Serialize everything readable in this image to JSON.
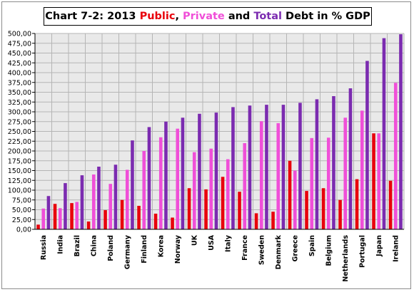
{
  "title": {
    "prefix": "Chart 7-2: 2013 ",
    "public": "Public",
    "sep1": ", ",
    "private": "Private",
    "and": " and ",
    "total": "Total",
    "suffix": " Debt in % GDP"
  },
  "colors": {
    "public": "#e8000b",
    "private": "#f04fd8",
    "total": "#7b2bb0",
    "grid": "#b5b5b5",
    "plot_bg": "#e9e9e9"
  },
  "chart_data": {
    "type": "bar",
    "title": "Chart 7-2: 2013 Public, Private and Total Debt in % GDP",
    "xlabel": "",
    "ylabel": "",
    "ylim": [
      0,
      500
    ],
    "ytick_step": 25,
    "grid": true,
    "legend": "none",
    "categories": [
      "Russia",
      "India",
      "Brazil",
      "China",
      "Poland",
      "Germany",
      "Finland",
      "Korea",
      "Norway",
      "UK",
      "USA",
      "Italy",
      "France",
      "Sweden",
      "Denmark",
      "Greece",
      "Spain",
      "Belgium",
      "Netherlands",
      "Portugal",
      "Japan",
      "Ireland"
    ],
    "series": [
      {
        "name": "Public",
        "values": [
          12,
          65,
          67,
          20,
          49,
          75,
          60,
          40,
          30,
          105,
          102,
          134,
          96,
          41,
          45,
          175,
          98,
          105,
          75,
          128,
          245,
          124
        ]
      },
      {
        "name": "Private",
        "values": [
          53,
          54,
          70,
          140,
          116,
          152,
          200,
          235,
          257,
          197,
          206,
          179,
          220,
          276,
          271,
          150,
          233,
          234,
          285,
          303,
          245,
          374
        ]
      },
      {
        "name": "Total",
        "values": [
          85,
          118,
          138,
          160,
          165,
          227,
          261,
          275,
          285,
          295,
          298,
          312,
          316,
          318,
          318,
          323,
          332,
          340,
          360,
          430,
          488,
          498
        ]
      }
    ]
  }
}
